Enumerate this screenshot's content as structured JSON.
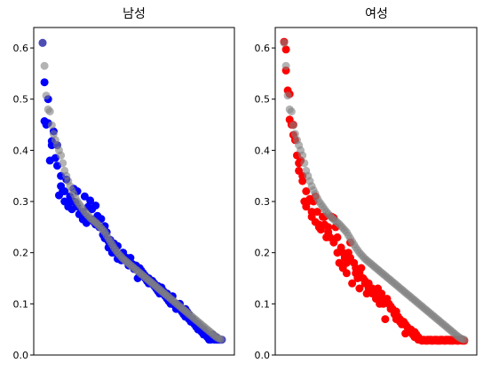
{
  "chart_data": [
    {
      "type": "scatter",
      "title": "남성",
      "ylim": [
        0.0,
        0.64
      ],
      "yticks": [
        "0.0",
        "0.1",
        "0.2",
        "0.3",
        "0.4",
        "0.5",
        "0.6"
      ],
      "xticks": [],
      "grid": false,
      "series": [
        {
          "color": "#0000ff",
          "x": [
            0.0,
            0.01,
            0.01,
            0.02,
            0.03,
            0.03,
            0.04,
            0.05,
            0.05,
            0.06,
            0.07,
            0.08,
            0.08,
            0.09,
            0.1,
            0.1,
            0.11,
            0.12,
            0.12,
            0.13,
            0.14,
            0.15,
            0.15,
            0.16,
            0.17,
            0.17,
            0.18,
            0.19,
            0.19,
            0.2,
            0.21,
            0.22,
            0.22,
            0.23,
            0.24,
            0.24,
            0.25,
            0.26,
            0.27,
            0.27,
            0.28,
            0.29,
            0.29,
            0.3,
            0.31,
            0.32,
            0.32,
            0.33,
            0.34,
            0.34,
            0.35,
            0.36,
            0.36,
            0.37,
            0.38,
            0.39,
            0.39,
            0.4,
            0.41,
            0.41,
            0.42,
            0.43,
            0.44,
            0.44,
            0.45,
            0.46,
            0.46,
            0.47,
            0.48,
            0.48,
            0.49,
            0.5,
            0.51,
            0.51,
            0.52,
            0.53,
            0.53,
            0.54,
            0.55,
            0.56,
            0.56,
            0.57,
            0.58,
            0.58,
            0.59,
            0.6,
            0.61,
            0.61,
            0.62,
            0.63,
            0.63,
            0.64,
            0.65,
            0.66,
            0.66,
            0.67,
            0.68,
            0.68,
            0.69,
            0.7,
            0.71,
            0.71,
            0.72,
            0.73,
            0.73,
            0.74,
            0.75,
            0.75,
            0.76,
            0.77,
            0.78,
            0.78,
            0.79,
            0.8,
            0.8,
            0.81,
            0.82,
            0.83,
            0.83,
            0.84,
            0.85,
            0.85,
            0.86,
            0.87,
            0.88,
            0.88,
            0.89,
            0.9,
            0.9,
            0.91,
            0.92,
            0.92,
            0.93,
            0.94,
            0.95,
            0.95,
            0.96,
            0.97,
            0.97,
            0.98
          ],
          "y": [
            0.61,
            0.533,
            0.457,
            0.45,
            0.5,
            0.453,
            0.38,
            0.41,
            0.418,
            0.437,
            0.385,
            0.37,
            0.41,
            0.312,
            0.35,
            0.33,
            0.32,
            0.3,
            0.32,
            0.343,
            0.29,
            0.31,
            0.3,
            0.285,
            0.325,
            0.3,
            0.298,
            0.29,
            0.32,
            0.275,
            0.276,
            0.265,
            0.28,
            0.31,
            0.258,
            0.27,
            0.29,
            0.302,
            0.285,
            0.265,
            0.26,
            0.255,
            0.292,
            0.272,
            0.25,
            0.25,
            0.266,
            0.235,
            0.228,
            0.252,
            0.24,
            0.222,
            0.21,
            0.225,
            0.2,
            0.218,
            0.206,
            0.2,
            0.188,
            0.213,
            0.19,
            0.185,
            0.2,
            0.2,
            0.185,
            0.19,
            0.188,
            0.175,
            0.18,
            0.19,
            0.178,
            0.168,
            0.17,
            0.175,
            0.15,
            0.17,
            0.155,
            0.165,
            0.16,
            0.155,
            0.15,
            0.145,
            0.15,
            0.14,
            0.14,
            0.145,
            0.135,
            0.14,
            0.13,
            0.135,
            0.125,
            0.12,
            0.132,
            0.125,
            0.12,
            0.115,
            0.11,
            0.12,
            0.105,
            0.1,
            0.115,
            0.1,
            0.098,
            0.09,
            0.1,
            0.095,
            0.09,
            0.1,
            0.085,
            0.08,
            0.09,
            0.075,
            0.085,
            0.07,
            0.08,
            0.065,
            0.07,
            0.06,
            0.065,
            0.055,
            0.06,
            0.05,
            0.055,
            0.045,
            0.05,
            0.04,
            0.045,
            0.035,
            0.04,
            0.03,
            0.035,
            0.03,
            0.04,
            0.03,
            0.03,
            0.035,
            0.03,
            0.03,
            0.03,
            0.03
          ]
        },
        {
          "color": "#808080",
          "x": [
            0.0,
            0.01,
            0.02,
            0.03,
            0.04,
            0.05,
            0.06,
            0.07,
            0.08,
            0.09,
            0.1,
            0.11,
            0.12,
            0.13,
            0.14,
            0.15,
            0.16,
            0.17,
            0.18,
            0.19,
            0.2,
            0.21,
            0.22,
            0.23,
            0.24,
            0.25,
            0.26,
            0.27,
            0.28,
            0.29,
            0.3,
            0.31,
            0.32,
            0.33,
            0.34,
            0.35,
            0.36,
            0.37,
            0.38,
            0.39,
            0.4,
            0.41,
            0.42,
            0.43,
            0.44,
            0.45,
            0.46,
            0.47,
            0.48,
            0.49,
            0.5,
            0.51,
            0.52,
            0.53,
            0.54,
            0.55,
            0.56,
            0.57,
            0.58,
            0.59,
            0.6,
            0.61,
            0.62,
            0.63,
            0.64,
            0.65,
            0.66,
            0.67,
            0.68,
            0.69,
            0.7,
            0.71,
            0.72,
            0.73,
            0.74,
            0.75,
            0.76,
            0.77,
            0.78,
            0.79,
            0.8,
            0.81,
            0.82,
            0.83,
            0.84,
            0.85,
            0.86,
            0.87,
            0.88,
            0.89,
            0.9,
            0.91,
            0.92,
            0.93,
            0.94,
            0.95,
            0.96,
            0.97,
            0.98
          ],
          "y": [
            0.61,
            0.565,
            0.507,
            0.48,
            0.476,
            0.449,
            0.432,
            0.42,
            0.41,
            0.4,
            0.39,
            0.375,
            0.36,
            0.35,
            0.34,
            0.33,
            0.322,
            0.315,
            0.307,
            0.3,
            0.295,
            0.29,
            0.285,
            0.28,
            0.276,
            0.272,
            0.268,
            0.265,
            0.262,
            0.259,
            0.256,
            0.252,
            0.248,
            0.244,
            0.24,
            0.234,
            0.228,
            0.222,
            0.216,
            0.21,
            0.205,
            0.2,
            0.196,
            0.192,
            0.188,
            0.185,
            0.182,
            0.179,
            0.176,
            0.173,
            0.17,
            0.167,
            0.164,
            0.161,
            0.158,
            0.155,
            0.152,
            0.149,
            0.146,
            0.143,
            0.14,
            0.137,
            0.134,
            0.131,
            0.128,
            0.125,
            0.122,
            0.119,
            0.116,
            0.113,
            0.11,
            0.107,
            0.104,
            0.101,
            0.098,
            0.095,
            0.092,
            0.089,
            0.086,
            0.083,
            0.08,
            0.077,
            0.074,
            0.071,
            0.068,
            0.065,
            0.062,
            0.059,
            0.056,
            0.053,
            0.05,
            0.047,
            0.044,
            0.041,
            0.038,
            0.035,
            0.033,
            0.031,
            0.03
          ]
        }
      ]
    },
    {
      "type": "scatter",
      "title": "여성",
      "ylim": [
        0.0,
        0.64
      ],
      "yticks": [
        "0.0",
        "0.1",
        "0.2",
        "0.3",
        "0.4",
        "0.5",
        "0.6"
      ],
      "xticks": [],
      "grid": false,
      "series": [
        {
          "color": "#ff0000",
          "x": [
            0.0,
            0.01,
            0.01,
            0.02,
            0.03,
            0.03,
            0.04,
            0.05,
            0.05,
            0.06,
            0.07,
            0.08,
            0.08,
            0.09,
            0.1,
            0.1,
            0.11,
            0.12,
            0.12,
            0.13,
            0.14,
            0.15,
            0.15,
            0.16,
            0.17,
            0.17,
            0.18,
            0.19,
            0.19,
            0.2,
            0.21,
            0.22,
            0.22,
            0.23,
            0.24,
            0.24,
            0.25,
            0.26,
            0.27,
            0.27,
            0.28,
            0.29,
            0.29,
            0.3,
            0.31,
            0.32,
            0.32,
            0.33,
            0.34,
            0.34,
            0.35,
            0.36,
            0.36,
            0.37,
            0.38,
            0.39,
            0.39,
            0.4,
            0.41,
            0.41,
            0.42,
            0.43,
            0.44,
            0.44,
            0.45,
            0.46,
            0.46,
            0.47,
            0.48,
            0.48,
            0.49,
            0.5,
            0.51,
            0.51,
            0.52,
            0.53,
            0.53,
            0.54,
            0.55,
            0.56,
            0.56,
            0.57,
            0.58,
            0.58,
            0.59,
            0.6,
            0.61,
            0.61,
            0.62,
            0.63,
            0.63,
            0.64,
            0.65,
            0.66,
            0.66,
            0.67,
            0.68,
            0.68,
            0.69,
            0.7,
            0.71,
            0.71,
            0.72,
            0.73,
            0.73,
            0.74,
            0.75,
            0.75,
            0.76,
            0.77,
            0.78,
            0.78,
            0.79,
            0.8,
            0.8,
            0.81,
            0.82,
            0.83,
            0.83,
            0.84,
            0.85,
            0.85,
            0.86,
            0.87,
            0.88,
            0.88,
            0.89,
            0.9,
            0.9,
            0.91,
            0.92,
            0.92,
            0.93,
            0.94,
            0.95,
            0.95,
            0.96,
            0.97,
            0.97,
            0.98
          ],
          "y": [
            0.612,
            0.597,
            0.556,
            0.517,
            0.51,
            0.46,
            0.45,
            0.45,
            0.43,
            0.42,
            0.39,
            0.375,
            0.36,
            0.38,
            0.35,
            0.34,
            0.3,
            0.29,
            0.32,
            0.3,
            0.305,
            0.28,
            0.27,
            0.3,
            0.26,
            0.31,
            0.28,
            0.255,
            0.25,
            0.245,
            0.27,
            0.255,
            0.27,
            0.23,
            0.25,
            0.24,
            0.23,
            0.27,
            0.268,
            0.22,
            0.25,
            0.2,
            0.23,
            0.18,
            0.21,
            0.2,
            0.17,
            0.19,
            0.18,
            0.16,
            0.2,
            0.19,
            0.22,
            0.14,
            0.18,
            0.17,
            0.16,
            0.15,
            0.13,
            0.16,
            0.17,
            0.15,
            0.145,
            0.14,
            0.12,
            0.13,
            0.14,
            0.125,
            0.12,
            0.13,
            0.12,
            0.11,
            0.13,
            0.12,
            0.1,
            0.12,
            0.11,
            0.1,
            0.07,
            0.11,
            0.105,
            0.1,
            0.09,
            0.095,
            0.09,
            0.08,
            0.085,
            0.07,
            0.075,
            0.065,
            0.07,
            0.06,
            0.065,
            0.042,
            0.06,
            0.055,
            0.05,
            0.045,
            0.05,
            0.04,
            0.045,
            0.035,
            0.04,
            0.03,
            0.035,
            0.03,
            0.03,
            0.028,
            0.03,
            0.028,
            0.03,
            0.028,
            0.03,
            0.028,
            0.03,
            0.028,
            0.03,
            0.028,
            0.03,
            0.028,
            0.03,
            0.028,
            0.03,
            0.028,
            0.03,
            0.028,
            0.03,
            0.028,
            0.03,
            0.028,
            0.03,
            0.028,
            0.03,
            0.028,
            0.03,
            0.028,
            0.03,
            0.028,
            0.03,
            0.028
          ]
        },
        {
          "color": "#808080",
          "x": [
            0.0,
            0.01,
            0.02,
            0.03,
            0.04,
            0.05,
            0.06,
            0.07,
            0.08,
            0.09,
            0.1,
            0.11,
            0.12,
            0.13,
            0.14,
            0.15,
            0.16,
            0.17,
            0.18,
            0.19,
            0.2,
            0.21,
            0.22,
            0.23,
            0.24,
            0.25,
            0.26,
            0.27,
            0.28,
            0.29,
            0.3,
            0.31,
            0.32,
            0.33,
            0.34,
            0.35,
            0.36,
            0.37,
            0.38,
            0.39,
            0.4,
            0.41,
            0.42,
            0.43,
            0.44,
            0.45,
            0.46,
            0.47,
            0.48,
            0.49,
            0.5,
            0.51,
            0.52,
            0.53,
            0.54,
            0.55,
            0.56,
            0.57,
            0.58,
            0.59,
            0.6,
            0.61,
            0.62,
            0.63,
            0.64,
            0.65,
            0.66,
            0.67,
            0.68,
            0.69,
            0.7,
            0.71,
            0.72,
            0.73,
            0.74,
            0.75,
            0.76,
            0.77,
            0.78,
            0.79,
            0.8,
            0.81,
            0.82,
            0.83,
            0.84,
            0.85,
            0.86,
            0.87,
            0.88,
            0.89,
            0.9,
            0.91,
            0.92,
            0.93,
            0.94,
            0.95,
            0.96,
            0.97,
            0.98
          ],
          "y": [
            0.61,
            0.565,
            0.507,
            0.48,
            0.476,
            0.449,
            0.432,
            0.42,
            0.41,
            0.4,
            0.39,
            0.375,
            0.36,
            0.35,
            0.34,
            0.33,
            0.322,
            0.315,
            0.307,
            0.3,
            0.295,
            0.29,
            0.285,
            0.28,
            0.276,
            0.272,
            0.268,
            0.265,
            0.262,
            0.259,
            0.256,
            0.252,
            0.248,
            0.244,
            0.24,
            0.234,
            0.228,
            0.222,
            0.216,
            0.21,
            0.205,
            0.2,
            0.196,
            0.192,
            0.188,
            0.185,
            0.182,
            0.179,
            0.176,
            0.173,
            0.17,
            0.167,
            0.164,
            0.161,
            0.158,
            0.155,
            0.152,
            0.149,
            0.146,
            0.143,
            0.14,
            0.137,
            0.134,
            0.131,
            0.128,
            0.125,
            0.122,
            0.119,
            0.116,
            0.113,
            0.11,
            0.107,
            0.104,
            0.101,
            0.098,
            0.095,
            0.092,
            0.089,
            0.086,
            0.083,
            0.08,
            0.077,
            0.074,
            0.071,
            0.068,
            0.065,
            0.062,
            0.059,
            0.056,
            0.053,
            0.05,
            0.047,
            0.044,
            0.041,
            0.038,
            0.035,
            0.033,
            0.031,
            0.03
          ]
        }
      ]
    }
  ]
}
